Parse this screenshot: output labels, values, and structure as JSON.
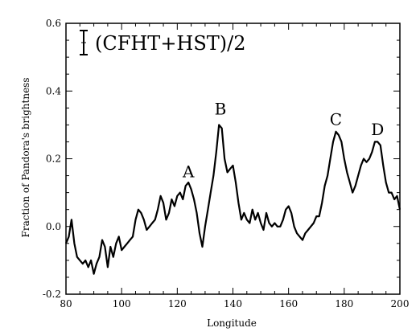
{
  "chart_data": {
    "type": "line",
    "xlabel": "Longitude",
    "ylabel": "Fraction of Pandora's brightness",
    "xlim": [
      80,
      200
    ],
    "ylim": [
      -0.2,
      0.6
    ],
    "x_ticks": [
      80,
      100,
      120,
      140,
      160,
      180,
      200
    ],
    "x_tick_labels": [
      "80",
      "100",
      "120",
      "140",
      "160",
      "180",
      "200"
    ],
    "y_ticks": [
      -0.2,
      0.0,
      0.2,
      0.4,
      0.6
    ],
    "y_tick_labels": [
      "-0.2",
      "0.0",
      "0.2",
      "0.4",
      "0.6"
    ],
    "legend_text": "(CFHT+HST)/2",
    "annotations": [
      {
        "label": "A",
        "x": 124,
        "y": 0.145
      },
      {
        "label": "B",
        "x": 135.5,
        "y": 0.33
      },
      {
        "label": "C",
        "x": 177,
        "y": 0.3
      },
      {
        "label": "D",
        "x": 192,
        "y": 0.27
      }
    ],
    "series": [
      {
        "x": [
          80,
          81,
          82,
          83,
          84,
          85,
          86,
          87,
          88,
          89,
          90,
          91,
          92,
          93,
          94,
          95,
          96,
          97,
          98,
          99,
          100,
          101,
          102,
          103,
          104,
          105,
          106,
          107,
          108,
          109,
          110,
          111,
          112,
          113,
          114,
          115,
          116,
          117,
          118,
          119,
          120,
          121,
          122,
          123,
          124,
          125,
          126,
          127,
          128,
          129,
          130,
          131,
          132,
          133,
          134,
          135,
          136,
          137,
          138,
          139,
          140,
          141,
          142,
          143,
          144,
          145,
          146,
          147,
          148,
          149,
          150,
          151,
          152,
          153,
          154,
          155,
          156,
          157,
          158,
          159,
          160,
          161,
          162,
          163,
          164,
          165,
          166,
          167,
          168,
          169,
          170,
          171,
          172,
          173,
          174,
          175,
          176,
          177,
          178,
          179,
          180,
          181,
          182,
          183,
          184,
          185,
          186,
          187,
          188,
          189,
          190,
          191,
          192,
          193,
          194,
          195,
          196,
          197,
          198,
          199,
          200
        ],
        "y": [
          -0.05,
          -0.03,
          0.02,
          -0.05,
          -0.09,
          -0.1,
          -0.11,
          -0.1,
          -0.12,
          -0.1,
          -0.14,
          -0.11,
          -0.09,
          -0.04,
          -0.06,
          -0.12,
          -0.06,
          -0.09,
          -0.05,
          -0.03,
          -0.07,
          -0.06,
          -0.05,
          -0.04,
          -0.03,
          0.02,
          0.05,
          0.04,
          0.02,
          -0.01,
          0.0,
          0.01,
          0.02,
          0.05,
          0.09,
          0.07,
          0.02,
          0.04,
          0.08,
          0.06,
          0.09,
          0.1,
          0.08,
          0.12,
          0.13,
          0.11,
          0.08,
          0.04,
          -0.02,
          -0.06,
          0.0,
          0.05,
          0.1,
          0.15,
          0.22,
          0.3,
          0.29,
          0.2,
          0.16,
          0.17,
          0.18,
          0.13,
          0.07,
          0.02,
          0.04,
          0.02,
          0.01,
          0.05,
          0.02,
          0.04,
          0.01,
          -0.01,
          0.04,
          0.01,
          0.0,
          0.01,
          0.0,
          0.0,
          0.02,
          0.05,
          0.06,
          0.04,
          0.0,
          -0.02,
          -0.03,
          -0.04,
          -0.02,
          -0.01,
          0.0,
          0.01,
          0.03,
          0.03,
          0.07,
          0.12,
          0.15,
          0.2,
          0.25,
          0.28,
          0.27,
          0.25,
          0.2,
          0.16,
          0.13,
          0.1,
          0.12,
          0.15,
          0.18,
          0.2,
          0.19,
          0.2,
          0.22,
          0.25,
          0.25,
          0.24,
          0.18,
          0.13,
          0.1,
          0.1,
          0.08,
          0.09,
          0.05
        ]
      }
    ]
  }
}
